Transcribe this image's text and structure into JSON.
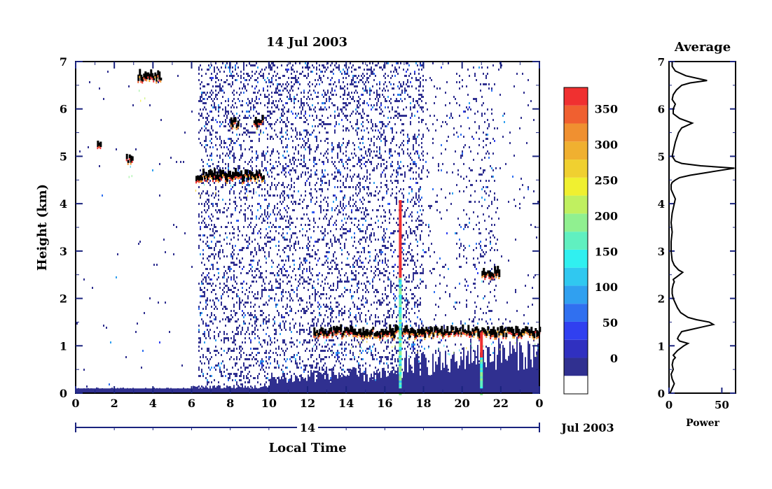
{
  "chart_data": [
    {
      "type": "heatmap",
      "title": "14 Jul 2003",
      "xlabel": "Local Time",
      "ylabel": "Height (km)",
      "xlim": [
        0,
        24
      ],
      "ylim": [
        0,
        7
      ],
      "x_ticks": [
        "0",
        "2",
        "4",
        "6",
        "8",
        "10",
        "12",
        "14",
        "16",
        "18",
        "20",
        "22",
        "0"
      ],
      "y_ticks": [
        "0",
        "1",
        "2",
        "3",
        "4",
        "5",
        "6",
        "7"
      ],
      "date_axis": {
        "day_label": "14",
        "month_year_label": "Jul 2003"
      },
      "colorbar": {
        "range": [
          -50,
          380
        ],
        "tick_labels": [
          "0",
          "50",
          "100",
          "150",
          "200",
          "250",
          "300",
          "350"
        ],
        "tick_values": [
          0,
          50,
          100,
          150,
          200,
          250,
          300,
          350
        ],
        "colors": [
          "#ffffff",
          "#303090",
          "#3030c0",
          "#3040f0",
          "#3070f0",
          "#30a0f0",
          "#30c8f0",
          "#30f0f0",
          "#60f0c0",
          "#90f090",
          "#c0f060",
          "#f0f030",
          "#f0d030",
          "#f0b030",
          "#f09030",
          "#f06030",
          "#f03030"
        ]
      },
      "features": [
        {
          "kind": "cloud",
          "time_start": 3.2,
          "time_end": 4.4,
          "height_km": 6.7,
          "max_power": 380
        },
        {
          "kind": "cloud",
          "time_start": 6.2,
          "time_end": 9.7,
          "height_km": 4.6,
          "max_power": 380
        },
        {
          "kind": "cloud",
          "time_start": 8.0,
          "time_end": 8.4,
          "height_km": 5.7,
          "max_power": 380
        },
        {
          "kind": "cloud",
          "time_start": 9.2,
          "time_end": 9.7,
          "height_km": 5.75,
          "max_power": 380
        },
        {
          "kind": "cloud",
          "time_start": 1.1,
          "time_end": 1.3,
          "height_km": 5.3,
          "max_power": 380
        },
        {
          "kind": "cloud",
          "time_start": 2.6,
          "time_end": 2.9,
          "height_km": 4.95,
          "max_power": 380
        },
        {
          "kind": "cloud",
          "time_start": 21.0,
          "time_end": 21.9,
          "height_km": 2.55,
          "max_power": 380
        },
        {
          "kind": "cloud",
          "time_start": 12.3,
          "time_end": 24.0,
          "height_km": 1.3,
          "max_power": 380
        },
        {
          "kind": "vertical_streak",
          "time": 16.8,
          "height_start_km": 0,
          "height_end_km": 4.1,
          "max_power": 380
        },
        {
          "kind": "vertical_streak",
          "time": 21.0,
          "height_start_km": 0,
          "height_end_km": 1.3,
          "max_power": 380
        },
        {
          "kind": "surface_layer",
          "time_start": 0,
          "time_end": 24,
          "height_km": 0.1,
          "power": 0
        }
      ]
    },
    {
      "type": "line",
      "title": "Average",
      "xlabel": "Power",
      "ylabel": "",
      "xlim": [
        0,
        63
      ],
      "ylim": [
        0,
        7
      ],
      "x_ticks": [
        "0",
        "50"
      ],
      "y_ticks": [
        "0",
        "1",
        "2",
        "3",
        "4",
        "5",
        "6",
        "7"
      ],
      "series": [
        {
          "x": [
            1,
            3,
            5,
            3,
            2,
            4,
            3,
            4,
            6,
            4,
            8,
            14,
            18,
            10,
            8,
            9,
            12,
            22,
            32,
            42,
            38,
            26,
            18,
            11,
            8,
            6,
            4,
            3,
            3,
            4,
            5,
            4,
            7,
            10,
            13,
            9,
            5,
            3,
            2,
            2,
            3,
            2,
            3,
            5,
            6,
            4,
            2,
            2,
            3,
            6,
            10,
            20,
            34,
            48,
            62,
            30,
            12,
            6,
            3,
            4,
            5,
            6,
            9,
            12,
            22,
            10,
            4,
            4,
            6,
            3,
            4,
            7,
            12,
            20,
            36,
            16,
            6,
            3,
            3
          ],
          "y": [
            0.0,
            0.1,
            0.2,
            0.3,
            0.4,
            0.5,
            0.6,
            0.7,
            0.75,
            0.8,
            0.9,
            1.0,
            1.05,
            1.1,
            1.15,
            1.2,
            1.3,
            1.35,
            1.4,
            1.45,
            1.5,
            1.55,
            1.6,
            1.7,
            1.8,
            1.9,
            2.0,
            2.1,
            2.2,
            2.3,
            2.35,
            2.4,
            2.45,
            2.5,
            2.55,
            2.6,
            2.7,
            2.8,
            3.0,
            3.2,
            3.4,
            3.6,
            3.8,
            4.0,
            4.1,
            4.2,
            4.3,
            4.4,
            4.45,
            4.5,
            4.55,
            4.6,
            4.65,
            4.7,
            4.75,
            4.8,
            4.85,
            4.9,
            5.0,
            5.1,
            5.2,
            5.3,
            5.5,
            5.6,
            5.7,
            5.8,
            5.9,
            6.0,
            6.1,
            6.2,
            6.3,
            6.4,
            6.5,
            6.55,
            6.6,
            6.7,
            6.8,
            6.9,
            7.0
          ]
        }
      ]
    }
  ]
}
